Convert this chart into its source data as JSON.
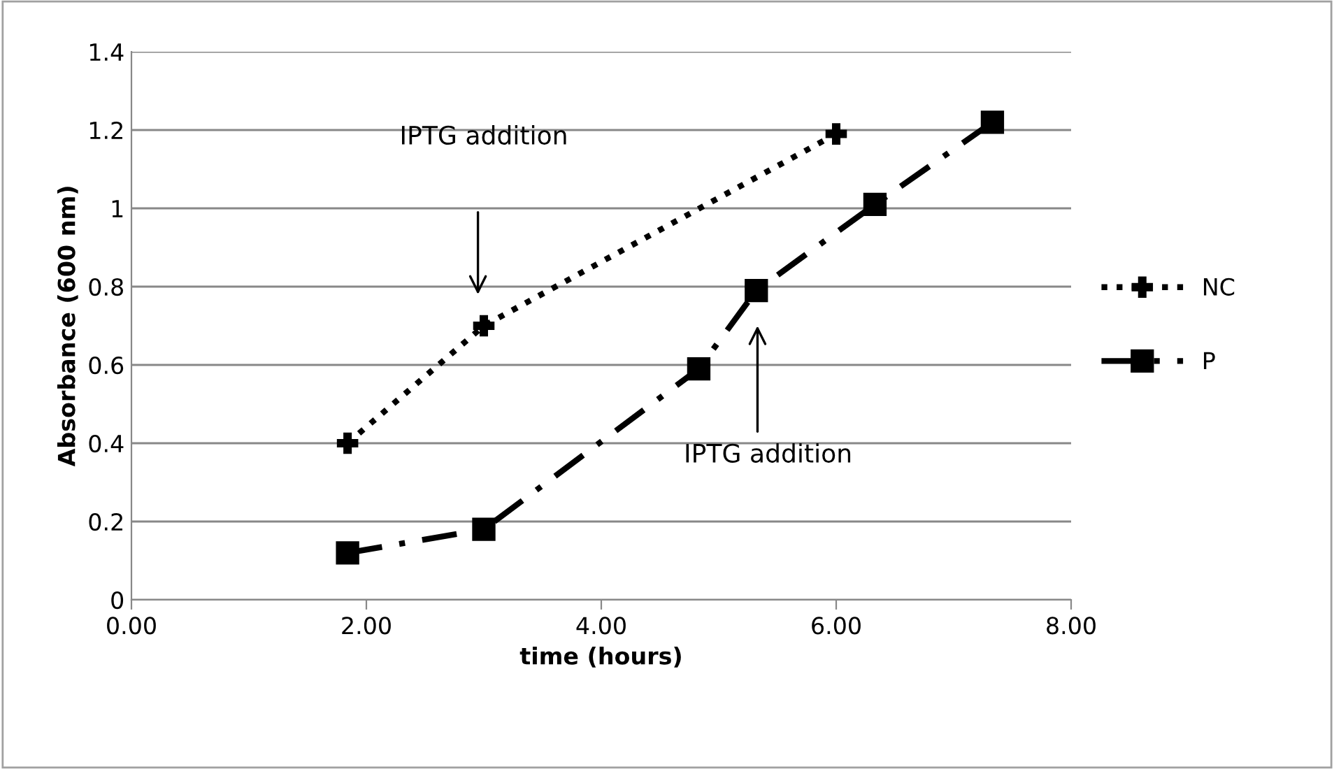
{
  "chart_data": {
    "type": "line",
    "xlabel": "time (hours)",
    "ylabel": "Absorbance (600 nm)",
    "xlim": [
      0,
      8
    ],
    "xticks": [
      {
        "value": 0,
        "label": "0.00"
      },
      {
        "value": 2,
        "label": "2.00"
      },
      {
        "value": 4,
        "label": "4.00"
      },
      {
        "value": 6,
        "label": "6.00"
      },
      {
        "value": 8,
        "label": "8.00"
      }
    ],
    "ylim": [
      0,
      1.4
    ],
    "yticks": [
      0,
      0.2,
      0.4,
      0.6,
      0.8,
      1,
      1.2,
      1.4
    ],
    "grid": "y",
    "legend": "right",
    "series": [
      {
        "name": "NC",
        "color": "#000000",
        "marker": "cross",
        "line_style": "dotted",
        "x": [
          1.84,
          3.0,
          6.0
        ],
        "values": [
          0.4,
          0.7,
          1.19
        ]
      },
      {
        "name": "P",
        "color": "#000000",
        "marker": "square",
        "line_style": "dashed",
        "x": [
          1.84,
          3.0,
          4.83,
          5.32,
          6.33,
          7.33
        ],
        "values": [
          0.12,
          0.18,
          0.59,
          0.79,
          1.01,
          1.22
        ]
      }
    ],
    "annotations": [
      "IPTG addition",
      "IPTG addition"
    ]
  }
}
